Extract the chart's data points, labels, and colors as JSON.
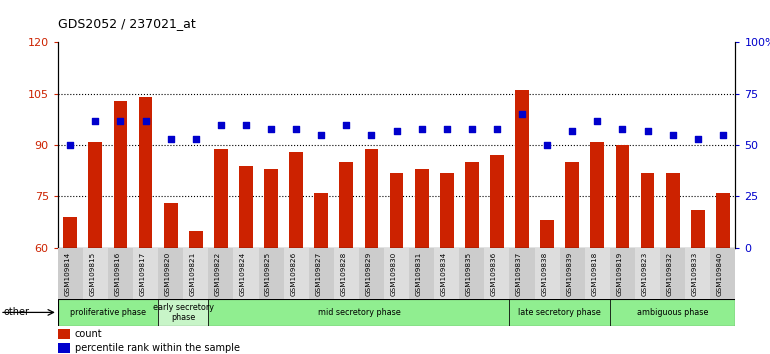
{
  "title": "GDS2052 / 237021_at",
  "samples": [
    "GSM109814",
    "GSM109815",
    "GSM109816",
    "GSM109817",
    "GSM109820",
    "GSM109821",
    "GSM109822",
    "GSM109824",
    "GSM109825",
    "GSM109826",
    "GSM109827",
    "GSM109828",
    "GSM109829",
    "GSM109830",
    "GSM109831",
    "GSM109834",
    "GSM109835",
    "GSM109836",
    "GSM109837",
    "GSM109838",
    "GSM109839",
    "GSM109818",
    "GSM109819",
    "GSM109823",
    "GSM109832",
    "GSM109833",
    "GSM109840"
  ],
  "counts": [
    69,
    91,
    103,
    104,
    73,
    65,
    89,
    84,
    83,
    88,
    76,
    85,
    89,
    82,
    83,
    82,
    85,
    87,
    106,
    68,
    85,
    91,
    90,
    82,
    82,
    71,
    76
  ],
  "percentiles": [
    50,
    62,
    62,
    62,
    53,
    53,
    60,
    60,
    58,
    58,
    55,
    60,
    55,
    57,
    58,
    58,
    58,
    58,
    65,
    50,
    57,
    62,
    58,
    57,
    55,
    53,
    55
  ],
  "bar_color": "#cc2200",
  "dot_color": "#0000cc",
  "ylim_left": [
    60,
    120
  ],
  "ylim_right": [
    0,
    100
  ],
  "yticks_left": [
    60,
    75,
    90,
    105,
    120
  ],
  "yticks_right": [
    0,
    25,
    50,
    75,
    100
  ],
  "yticklabels_right": [
    "0",
    "25",
    "50",
    "75",
    "100%"
  ],
  "phases": [
    {
      "label": "proliferative phase",
      "start": 0,
      "end": 3,
      "color": "#90ee90"
    },
    {
      "label": "early secretory\nphase",
      "start": 4,
      "end": 5,
      "color": "#c8f5c8"
    },
    {
      "label": "mid secretory phase",
      "start": 6,
      "end": 17,
      "color": "#90ee90"
    },
    {
      "label": "late secretory phase",
      "start": 18,
      "end": 21,
      "color": "#90ee90"
    },
    {
      "label": "ambiguous phase",
      "start": 22,
      "end": 26,
      "color": "#90ee90"
    }
  ],
  "other_label": "other",
  "legend_items": [
    {
      "label": "count",
      "color": "#cc2200"
    },
    {
      "label": "percentile rank within the sample",
      "color": "#0000cc"
    }
  ]
}
